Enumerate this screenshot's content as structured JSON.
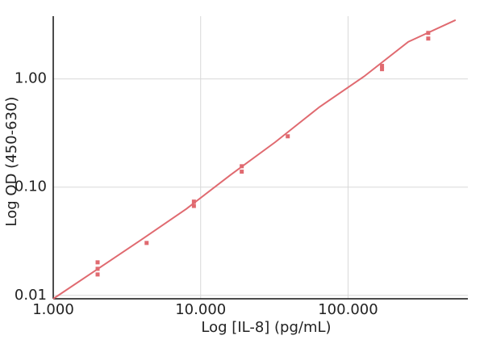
{
  "chart_data": {
    "type": "scatter",
    "x_label": "Log [IL-8] (pg/mL)",
    "y_label": "Log OD (450-630)",
    "x": [
      2,
      2,
      2,
      4.3,
      9,
      9,
      19,
      19,
      39,
      170,
      170,
      350,
      350
    ],
    "y": [
      0.0202,
      0.0176,
      0.0156,
      0.0305,
      0.0735,
      0.067,
      0.156,
      0.139,
      0.295,
      1.32,
      1.23,
      2.66,
      2.36
    ],
    "fit_x": [
      1,
      2,
      4,
      8,
      16,
      32,
      64,
      128,
      256,
      537
    ],
    "fit_y": [
      0.0093,
      0.0175,
      0.033,
      0.063,
      0.13,
      0.26,
      0.55,
      1.05,
      2.2,
      3.5
    ],
    "color": "#e06a70",
    "log_x": true,
    "log_y": true,
    "grid": true,
    "xlim": [
      1,
      650
    ],
    "ylim": [
      0.0093,
      3.8
    ],
    "xticks": [
      {
        "value": 1,
        "label": "1.000"
      },
      {
        "value": 10,
        "label": "10.000"
      },
      {
        "value": 100,
        "label": "100.000"
      }
    ],
    "yticks": [
      0.01,
      {
        "value": 0.1,
        "label": "0.10"
      },
      {
        "value": 1,
        "label": "1.00"
      }
    ]
  }
}
